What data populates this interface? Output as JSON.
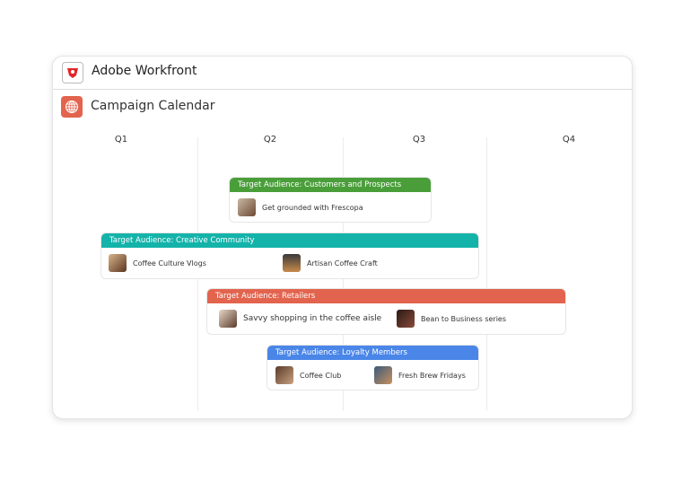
{
  "app": {
    "title": "Adobe Workfront",
    "logo_icon": "workfront-logo-icon"
  },
  "page": {
    "title": "Campaign Calendar",
    "icon": "globe-icon"
  },
  "quarters": [
    "Q1",
    "Q2",
    "Q3",
    "Q4"
  ],
  "groups": [
    {
      "label": "Target Audience: Customers and Prospects",
      "color": "#4a9e3a",
      "items": [
        "Get grounded with Frescopa"
      ]
    },
    {
      "label": "Target Audience: Creative Community",
      "color": "#14b3aa",
      "items": [
        "Coffee Culture Vlogs",
        "Artisan Coffee Craft"
      ]
    },
    {
      "label": "Target Audience: Retailers",
      "color": "#e2644e",
      "items": [
        "Savvy shopping in the coffee aisle",
        "Bean to Business series"
      ]
    },
    {
      "label": "Target Audience: Loyalty Members",
      "color": "#4a86e8",
      "items": [
        "Coffee Club",
        "Fresh Brew Fridays"
      ]
    }
  ]
}
